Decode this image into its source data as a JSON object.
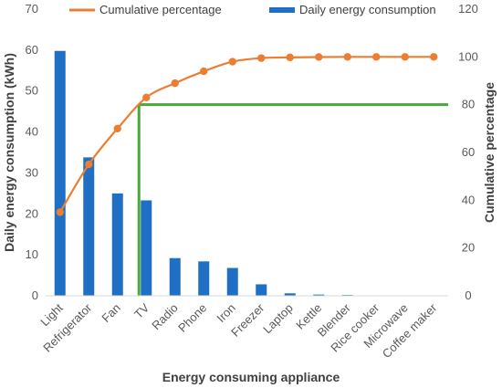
{
  "chart_data": {
    "type": "bar",
    "categories": [
      "Light",
      "Refrigerator",
      "Fan",
      "TV",
      "Radio",
      "Phone",
      "Iron",
      "Freezer",
      "Laptop",
      "Kettle",
      "Blender",
      "Rice cooker",
      "Microwave",
      "Coffee maker"
    ],
    "series": [
      {
        "name": "Daily energy consumption",
        "type": "bar",
        "axis": "left",
        "color": "#1f6fc5",
        "values": [
          59.8,
          33.8,
          25.0,
          23.3,
          9.2,
          8.4,
          6.8,
          2.8,
          0.6,
          0.3,
          0.2,
          0.1,
          0.05,
          0.03
        ]
      },
      {
        "name": "Cumulative percentage",
        "type": "line",
        "axis": "right",
        "color": "#ed7d31",
        "values": [
          35,
          55,
          70,
          83,
          89,
          94,
          98,
          99.5,
          99.8,
          99.95,
          100,
          100,
          100,
          100
        ]
      }
    ],
    "threshold": {
      "color": "#4aa83a",
      "percentage": 80,
      "category": "TV"
    },
    "xlabel": "Energy consuming appliance",
    "ylabel": "Daily energy consumption (kWh)",
    "y2label": "Cumulative percentage",
    "ylim": [
      0,
      70
    ],
    "yticks": [
      "0",
      "10",
      "20",
      "30",
      "40",
      "50",
      "60",
      "70"
    ],
    "y2lim": [
      0,
      120
    ],
    "y2ticks": [
      "0",
      "20",
      "40",
      "60",
      "80",
      "100",
      "120"
    ],
    "grid": false,
    "legend": "top"
  }
}
